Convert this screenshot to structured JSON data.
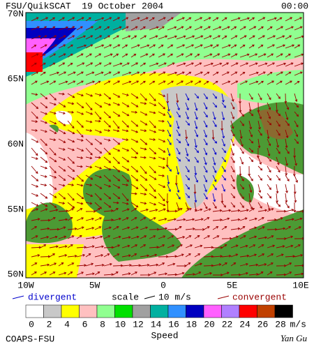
{
  "header": {
    "title": "FSU/QuikSCAT  19 October 2004",
    "time": "00:00"
  },
  "map": {
    "lat_labels": [
      "70N",
      "65N",
      "60N",
      "55N",
      "50N"
    ],
    "lon_labels": [
      "10W",
      "5W",
      "0",
      "5E",
      "10E"
    ]
  },
  "legend": {
    "divergent": "divergent",
    "scale": "scale",
    "scale_value": "10 m/s",
    "convergent": "convergent"
  },
  "colorbar": {
    "colors": [
      "#ffffff",
      "#c8c8c8",
      "#ffff00",
      "#ffc0c0",
      "#90ff90",
      "#00e000",
      "#a0a0a0",
      "#00b0a0",
      "#3090ff",
      "#0000c0",
      "#ff60ff",
      "#b080ff",
      "#ff0000",
      "#c04000",
      "#000000"
    ],
    "labels": [
      "0",
      "2",
      "4",
      "6",
      "8",
      "10",
      "12",
      "14",
      "16",
      "18",
      "20",
      "22",
      "24",
      "26",
      "28"
    ],
    "unit": "m/s",
    "title": "Speed"
  },
  "footer": {
    "left": "COAPS-FSU",
    "right": "Yan Gu"
  }
}
